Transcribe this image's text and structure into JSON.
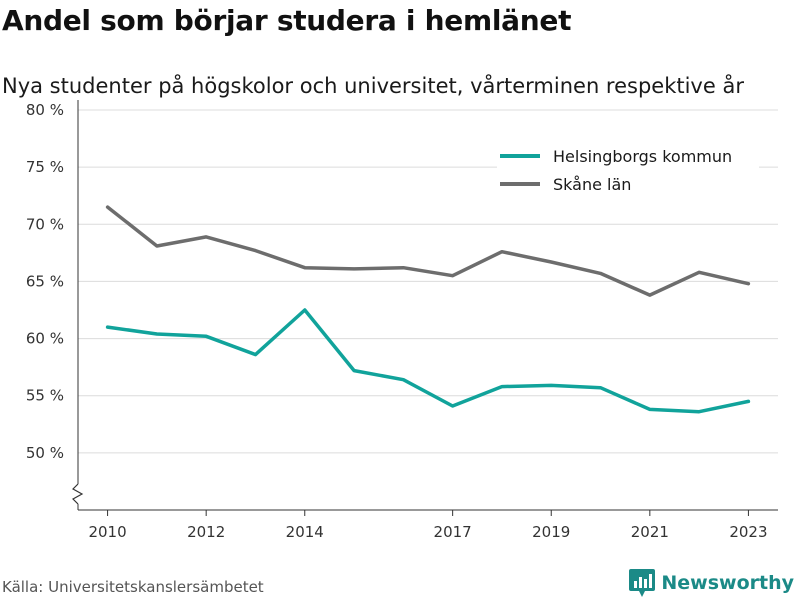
{
  "title": "Andel som börjar studera i hemlänet",
  "subtitle": "Nya studenter på högskolor och universitet, vårterminen respektive år",
  "source": "Källa: Universitetskanslersämbetet",
  "brand": {
    "name": "Newsworthy",
    "icon": "newsworthy-logo-icon"
  },
  "colors": {
    "helsingborg": "#11a39b",
    "skane": "#6d6d6d",
    "grid": "#dcdcdc",
    "axis": "#333333"
  },
  "chart_data": {
    "type": "line",
    "title": "Andel som börjar studera i hemlänet",
    "subtitle": "Nya studenter på högskolor och universitet, vårterminen respektive år",
    "xlabel": "",
    "ylabel": "",
    "x": [
      2010,
      2011,
      2012,
      2013,
      2014,
      2015,
      2016,
      2017,
      2018,
      2019,
      2020,
      2021,
      2022,
      2023
    ],
    "x_ticks": [
      2010,
      2012,
      2014,
      2017,
      2019,
      2021,
      2023
    ],
    "y_ticks": [
      50,
      55,
      60,
      65,
      70,
      75,
      80
    ],
    "y_tick_labels": [
      "50 %",
      "55 %",
      "60 %",
      "65 %",
      "70 %",
      "75 %",
      "80 %"
    ],
    "xlim": [
      2009.4,
      2023.6
    ],
    "ylim": [
      45,
      80
    ],
    "y_axis_break": true,
    "grid": true,
    "legend_position": "top-right",
    "series": [
      {
        "name": "Helsingborgs kommun",
        "color": "#11a39b",
        "values": [
          61.0,
          60.4,
          60.2,
          58.6,
          62.5,
          57.2,
          56.4,
          54.1,
          55.8,
          55.9,
          55.7,
          53.8,
          53.6,
          54.5
        ]
      },
      {
        "name": "Skåne län",
        "color": "#6d6d6d",
        "values": [
          71.5,
          68.1,
          68.9,
          67.7,
          66.2,
          66.1,
          66.2,
          65.5,
          67.6,
          66.7,
          65.7,
          63.8,
          65.8,
          64.8
        ]
      }
    ]
  }
}
